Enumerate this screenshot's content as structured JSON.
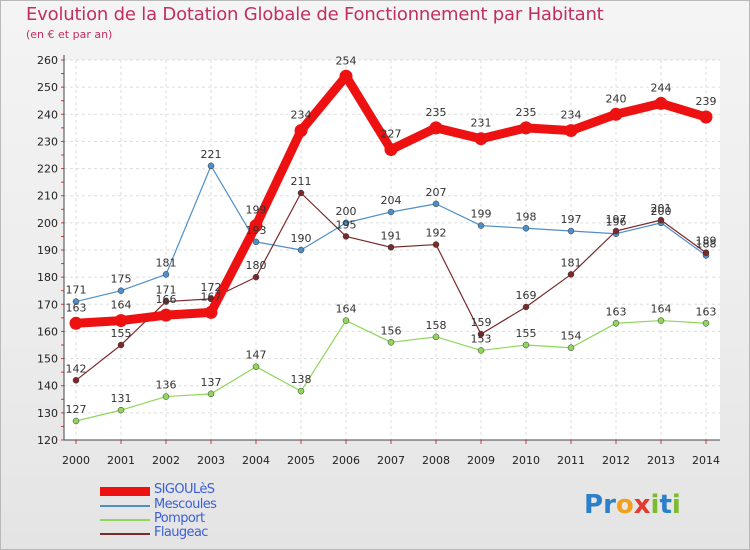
{
  "title": "Evolution de la Dotation Globale de Fonctionnement par Habitant",
  "subtitle": "(en € et par an)",
  "logo": {
    "text": "Proxiti",
    "letters": [
      "P",
      "r",
      "o",
      "x",
      "i",
      "t",
      "i"
    ],
    "colors": [
      "#2c7fc9",
      "#2c7fc9",
      "#f2a01c",
      "#e23b2e",
      "#7bbb2c",
      "#2c7fc9",
      "#7bbb2c"
    ]
  },
  "chart_data": {
    "type": "line",
    "x": [
      "2000",
      "2001",
      "2002",
      "2003",
      "2004",
      "2005",
      "2006",
      "2007",
      "2008",
      "2009",
      "2010",
      "2011",
      "2012",
      "2013",
      "2014"
    ],
    "ylim": [
      120,
      260
    ],
    "yticks": [
      120,
      130,
      140,
      150,
      160,
      170,
      180,
      190,
      200,
      210,
      220,
      230,
      240,
      250,
      260
    ],
    "grid": true,
    "legend_position": "bottom-left",
    "series": [
      {
        "name": "SIGOULèS",
        "color": "#ee1111",
        "values": [
          163,
          164,
          166,
          167,
          199,
          234,
          254,
          227,
          235,
          231,
          235,
          234,
          240,
          244,
          239
        ]
      },
      {
        "name": "Mescoules",
        "color": "#4f8fc8",
        "values": [
          171,
          175,
          181,
          221,
          193,
          190,
          200,
          204,
          207,
          199,
          198,
          197,
          196,
          200,
          188
        ]
      },
      {
        "name": "Pomport",
        "color": "#8fd65a",
        "values": [
          127,
          131,
          136,
          137,
          147,
          138,
          164,
          156,
          158,
          153,
          155,
          154,
          163,
          164,
          163
        ]
      },
      {
        "name": "Flaugeac",
        "color": "#7a2a2a",
        "values": [
          142,
          155,
          171,
          172,
          180,
          211,
          195,
          191,
          192,
          159,
          169,
          181,
          197,
          201,
          189
        ]
      }
    ]
  }
}
